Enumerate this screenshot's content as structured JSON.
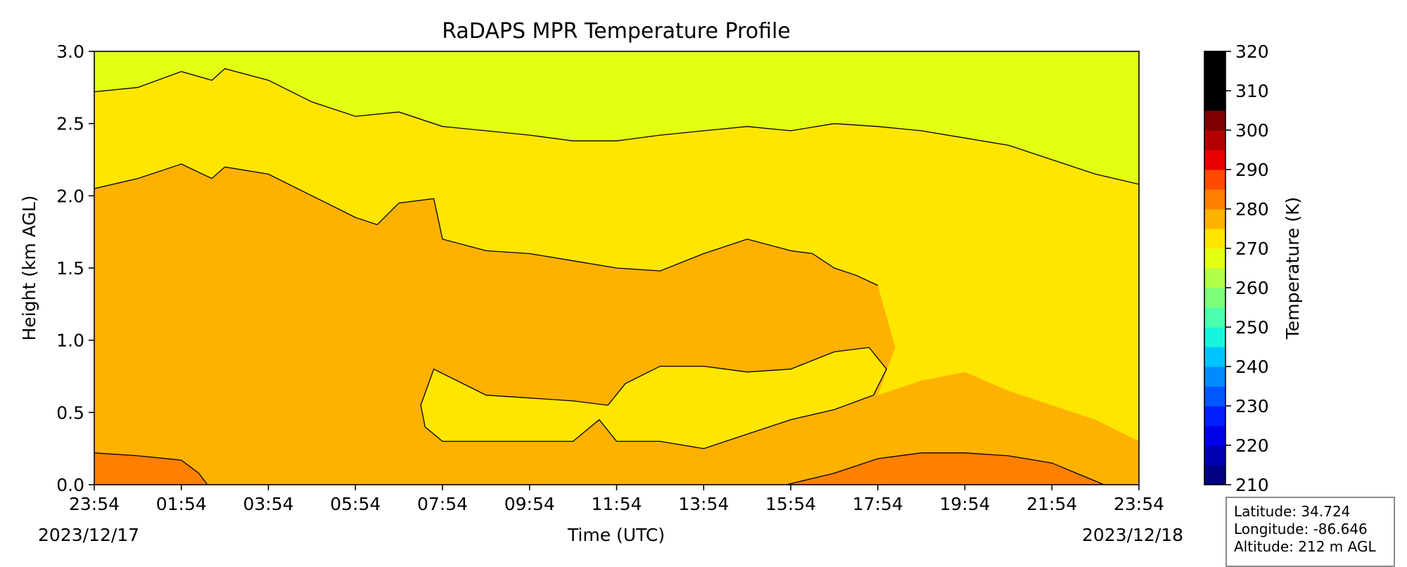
{
  "chart_data": {
    "type": "heatmap",
    "title": "RaDAPS MPR Temperature Profile",
    "xlabel": "Time (UTC)",
    "ylabel": "Height (km AGL)",
    "x_tick_labels": [
      "23:54",
      "01:54",
      "03:54",
      "05:54",
      "07:54",
      "09:54",
      "11:54",
      "13:54",
      "15:54",
      "17:54",
      "19:54",
      "21:54",
      "23:54"
    ],
    "x_tick_hours": [
      0,
      2,
      4,
      6,
      8,
      10,
      12,
      14,
      16,
      18,
      20,
      22,
      24
    ],
    "start_date": "2023/12/17",
    "end_date": "2023/12/18",
    "y_ticks": [
      0.0,
      0.5,
      1.0,
      1.5,
      2.0,
      2.5,
      3.0
    ],
    "ylim": [
      0.0,
      3.0
    ],
    "xlim_hours": [
      0,
      24
    ],
    "colorbar": {
      "label": "Temperature (K)",
      "min": 210,
      "max": 320,
      "step": 5,
      "tick_values": [
        210,
        220,
        230,
        240,
        250,
        260,
        270,
        280,
        290,
        300,
        310,
        320
      ],
      "colors": [
        "#000080",
        "#0000b2",
        "#0000e8",
        "#0020ff",
        "#0058ff",
        "#008cff",
        "#00c4ff",
        "#18f5de",
        "#4bffac",
        "#7cff79",
        "#b0ff47",
        "#e3ff14",
        "#ffe600",
        "#ffb100",
        "#ff7f00",
        "#ff4a00",
        "#e80000",
        "#b20000",
        "#7f0000"
      ]
    },
    "contour_levels_K": [
      270,
      275,
      280
    ],
    "contours": [
      {
        "level_K": 270,
        "description": "boundary between 265-270 and 270-275 bands",
        "hours": [
          0,
          1,
          2,
          2.7,
          3,
          4,
          5,
          6,
          7,
          8,
          9,
          10,
          11,
          12,
          13,
          14,
          15,
          16,
          17,
          18,
          19,
          20,
          21,
          22,
          23,
          24
        ],
        "height_km": [
          2.72,
          2.75,
          2.86,
          2.8,
          2.88,
          2.8,
          2.65,
          2.55,
          2.58,
          2.48,
          2.45,
          2.42,
          2.38,
          2.38,
          2.42,
          2.45,
          2.48,
          2.45,
          2.5,
          2.48,
          2.45,
          2.4,
          2.35,
          2.25,
          2.15,
          2.08
        ]
      },
      {
        "level_K": 275,
        "description": "upper boundary of 275-280 band",
        "hours": [
          0,
          1,
          2,
          2.7,
          3,
          4,
          5,
          6,
          6.5,
          7,
          7.8,
          8,
          9,
          10,
          11,
          12,
          13,
          14,
          15,
          16,
          16.5,
          17,
          17.5,
          18
        ],
        "height_km": [
          2.05,
          2.12,
          2.22,
          2.12,
          2.2,
          2.15,
          2.0,
          1.85,
          1.8,
          1.95,
          1.98,
          1.7,
          1.62,
          1.6,
          1.55,
          1.5,
          1.48,
          1.6,
          1.7,
          1.62,
          1.6,
          1.5,
          1.45,
          1.38
        ]
      },
      {
        "level_K": 280,
        "description": "warm near-surface layer start of period",
        "hours": [
          0,
          1,
          2,
          2.4,
          2.6
        ],
        "height_km": [
          0.22,
          0.2,
          0.17,
          0.08,
          0.0
        ]
      },
      {
        "level_K": 280,
        "description": "warm near-surface layer end of period",
        "hours": [
          15.9,
          17,
          18,
          19,
          20,
          21,
          22,
          23.2
        ],
        "height_km": [
          0.0,
          0.08,
          0.18,
          0.22,
          0.22,
          0.2,
          0.15,
          0.0
        ]
      }
    ],
    "warm_surface_layers_K": "280-285"
  },
  "info": {
    "latitude": "Latitude: 34.724",
    "longitude": "Longitude: -86.646",
    "altitude": "Altitude: 212 m AGL"
  }
}
